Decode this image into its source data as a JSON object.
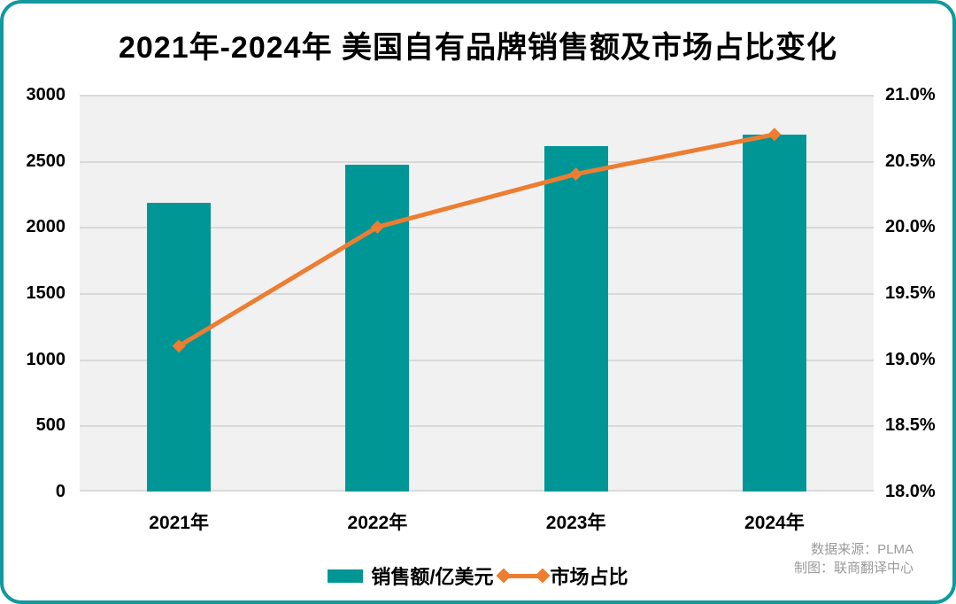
{
  "chart_data": {
    "type": "combo",
    "title": "2021年-2024年 美国自有品牌销售额及市场占比变化",
    "categories": [
      "2021年",
      "2022年",
      "2023年",
      "2024年"
    ],
    "series": [
      {
        "name": "销售额/亿美元",
        "type": "bar",
        "axis": "left",
        "color": "#009696",
        "values": [
          2180,
          2470,
          2610,
          2700
        ]
      },
      {
        "name": "市场占比",
        "type": "line",
        "axis": "right",
        "color": "#ed7d31",
        "marker": "diamond",
        "values": [
          19.1,
          20.0,
          20.4,
          20.7
        ]
      }
    ],
    "left_axis": {
      "min": 0,
      "max": 3000,
      "step": 500,
      "format": "int",
      "ticks": [
        "0",
        "500",
        "1000",
        "1500",
        "2000",
        "2500",
        "3000"
      ]
    },
    "right_axis": {
      "min": 18,
      "max": 21,
      "step": 0.5,
      "format": "percent1",
      "ticks": [
        "18.0%",
        "18.5%",
        "19.0%",
        "19.5%",
        "20.0%",
        "20.5%",
        "21.0%"
      ]
    },
    "grid": "horizontal",
    "legend_position": "bottom",
    "plot_background": "#f1f1f1",
    "gridline_color": "#d9d9d9"
  },
  "source": {
    "line1": "数据来源：PLMA",
    "line2": "制图：联商翻译中心"
  },
  "colors": {
    "card_border": "#12999e",
    "bar": "#009696",
    "line": "#ed7d31",
    "title_text": "#000000",
    "source_text": "#9a9a9a"
  }
}
